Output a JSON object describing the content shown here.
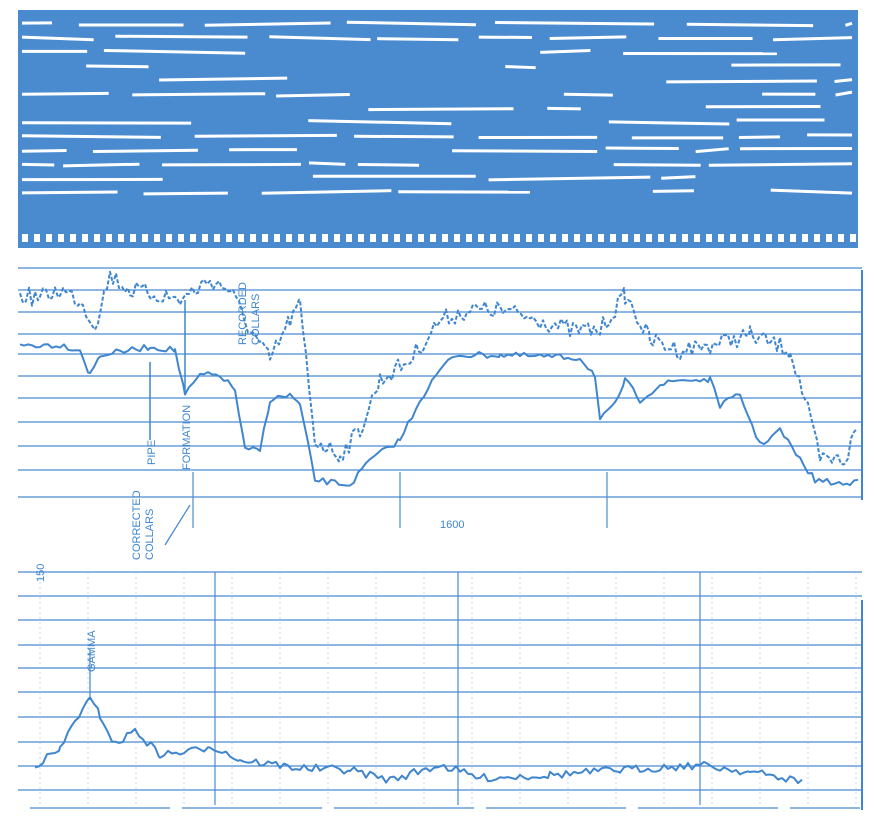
{
  "labels": {
    "recorded": "RECORDED",
    "collars": "COLLARS",
    "pipe": "PIPE",
    "formation": "FORMATION",
    "corrected": "CORRECTED",
    "corrected_collars": "COLLARS",
    "depth": "1600",
    "scale": "150",
    "gamma": "GAMMA"
  }
}
